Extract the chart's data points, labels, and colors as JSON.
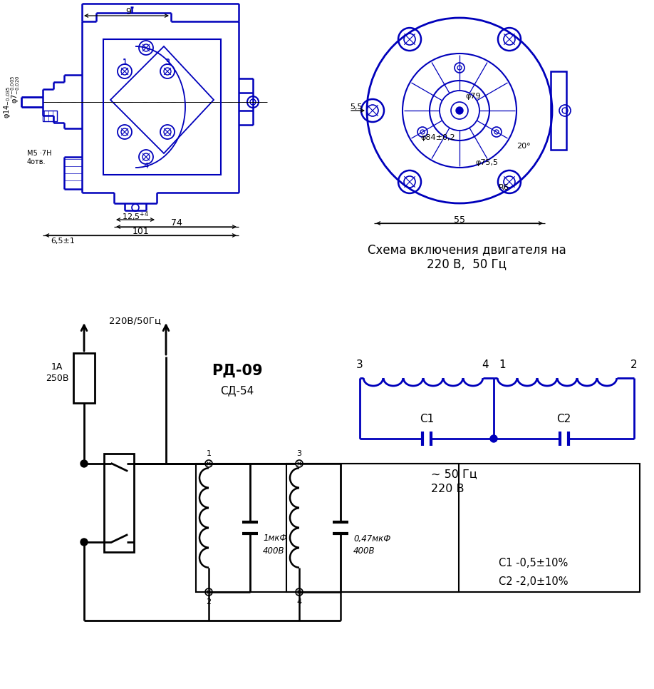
{
  "bg_color": "#ffffff",
  "blue": "#0000bb",
  "black": "#000000",
  "label_220": "220В/50Гц",
  "label_rd09": "РД-09",
  "label_sd54": "СД-54",
  "label_1A_line1": "1А",
  "label_1A_line2": "250В",
  "label_1mkF_line1": "1мкФ",
  "label_1mkF_line2": "400В",
  "label_047mkF_line1": "0,47мкФ",
  "label_047mkF_line2": "400В",
  "label_50hz_line1": "~ 50 Гц",
  "label_50hz_line2": "220 В",
  "label_c1val": "С1 -0,5±10%",
  "label_c2val": "С2 -2,0±10%",
  "schema_title1": "Схема включения двигателя на",
  "schema_title2": "220 В,  50 Гц",
  "dim_9": "9",
  "dim_74": "74",
  "dim_101": "101",
  "dim_125": "12,5",
  "dim_65": "6,5±1",
  "dim_55": "55",
  "dim_55left": "5,5",
  "dim_r6": "R6",
  "dim_20deg": "20°",
  "dim_phi79": "φ79",
  "dim_phi84": "φ84±0,2",
  "dim_phi755": "φ75,5",
  "dim_phi14": "φ14",
  "dim_phi7": "φ7",
  "label_m5": "М5 ·7Н",
  "label_4otv": "4отв.",
  "node_labels": [
    "1",
    "2",
    "3",
    "4"
  ]
}
